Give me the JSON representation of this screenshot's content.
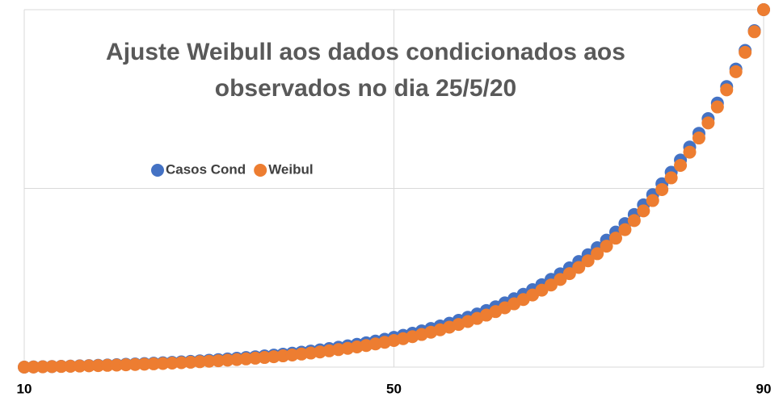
{
  "chart_data": {
    "type": "scatter",
    "title": "Ajuste Weibull aos dados condicionados aos observados no dia 25/5/20",
    "x": [
      10,
      11,
      12,
      13,
      14,
      15,
      16,
      17,
      18,
      19,
      20,
      21,
      22,
      23,
      24,
      25,
      26,
      27,
      28,
      29,
      30,
      31,
      32,
      33,
      34,
      35,
      36,
      37,
      38,
      39,
      40,
      41,
      42,
      43,
      44,
      45,
      46,
      47,
      48,
      49,
      50,
      51,
      52,
      53,
      54,
      55,
      56,
      57,
      58,
      59,
      60,
      61,
      62,
      63,
      64,
      65,
      66,
      67,
      68,
      69,
      70,
      71,
      72,
      73,
      74,
      75,
      76,
      77,
      78,
      79,
      80,
      81,
      82,
      83,
      84,
      85,
      86,
      87,
      88,
      89,
      90
    ],
    "series": [
      {
        "name": "Casos Cond",
        "color": "#4472c4",
        "values": [
          0,
          0.05,
          0.11,
          0.16,
          0.23,
          0.29,
          0.36,
          0.43,
          0.51,
          0.59,
          0.68,
          0.78,
          0.88,
          0.98,
          1.09,
          1.21,
          1.34,
          1.47,
          1.61,
          1.76,
          1.93,
          2.1,
          2.28,
          2.47,
          2.67,
          2.89,
          3.12,
          3.36,
          3.62,
          3.9,
          4.19,
          4.5,
          4.83,
          5.18,
          5.55,
          5.95,
          6.37,
          6.81,
          7.28,
          7.78,
          8.32,
          8.88,
          9.48,
          10.12,
          10.8,
          11.52,
          12.28,
          13.09,
          13.95,
          14.87,
          15.84,
          16.87,
          17.96,
          19.12,
          20.36,
          21.67,
          23.06,
          24.54,
          26.11,
          27.77,
          29.54,
          31.42,
          33.41,
          35.53,
          37.78,
          40.16,
          42.7,
          45.39,
          48.25,
          51.29,
          54.51,
          57.93,
          61.56,
          65.42,
          69.52,
          73.87,
          78.49,
          83.39,
          88.6,
          94.13,
          100
        ]
      },
      {
        "name": "Weibul",
        "color": "#ed7d31",
        "values": [
          0,
          0.04,
          0.09,
          0.14,
          0.19,
          0.24,
          0.3,
          0.36,
          0.43,
          0.5,
          0.57,
          0.65,
          0.74,
          0.83,
          0.92,
          1.02,
          1.13,
          1.25,
          1.37,
          1.51,
          1.65,
          1.79,
          1.95,
          2.12,
          2.3,
          2.5,
          2.7,
          2.92,
          3.15,
          3.4,
          3.66,
          3.94,
          4.24,
          4.56,
          4.9,
          5.26,
          5.64,
          6.05,
          6.49,
          6.95,
          7.45,
          7.97,
          8.53,
          9.13,
          9.77,
          10.44,
          11.17,
          11.93,
          12.75,
          13.62,
          14.55,
          15.54,
          16.59,
          17.71,
          18.91,
          20.18,
          21.54,
          22.98,
          24.52,
          26.15,
          27.89,
          29.75,
          31.73,
          33.83,
          36.08,
          38.46,
          41.01,
          43.71,
          46.6,
          49.67,
          52.95,
          56.43,
          60.14,
          64.1,
          68.31,
          72.79,
          77.57,
          82.66,
          88.07,
          93.84,
          100
        ]
      }
    ],
    "xlim": [
      10,
      90
    ],
    "xticks": [
      10,
      50,
      90
    ],
    "ylim": [
      0,
      100
    ],
    "yticks": [
      0,
      50,
      100
    ],
    "grid": true
  }
}
